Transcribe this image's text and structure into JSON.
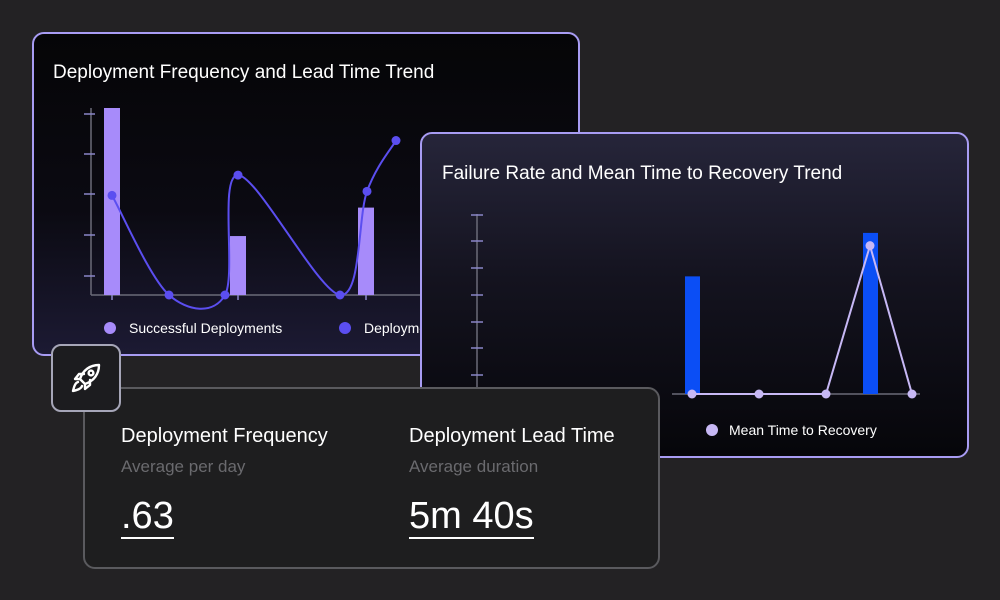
{
  "deployment_card": {
    "title": "Deployment Frequency and Lead Time Trend",
    "legend": [
      {
        "label": "Successful Deployments",
        "color": "#a78bfa"
      },
      {
        "label": "Deployment Lead Time",
        "color": "#5b4ef0"
      }
    ],
    "chart_data": {
      "type": "bar",
      "x": [
        0,
        1,
        2,
        3,
        4,
        5,
        6
      ],
      "series": [
        {
          "name": "Successful Deployments",
          "type": "bar",
          "color": "#a78bfa",
          "values": [
            4.6,
            0,
            0,
            1.45,
            0,
            0,
            2.15
          ]
        },
        {
          "name": "Deployment Lead Time",
          "type": "line",
          "color": "#5b4ef0",
          "values": [
            2.45,
            0,
            0,
            2.95,
            0,
            2.55,
            3.8
          ]
        }
      ],
      "ylim": [
        0,
        4.6
      ],
      "xlabel": "",
      "ylabel": ""
    }
  },
  "failure_card": {
    "title": "Failure Rate and Mean Time to Recovery Trend",
    "legend": [
      {
        "label": "Mean Time to Recovery",
        "color": "#c7b8f5"
      }
    ],
    "chart_data": {
      "type": "bar",
      "x": [
        0,
        1,
        2,
        3,
        4
      ],
      "series": [
        {
          "name": "Failure Rate",
          "type": "bar",
          "color": "#0b4ef5",
          "values": [
            4.6,
            0,
            0,
            6.3,
            0
          ]
        },
        {
          "name": "Mean Time to Recovery",
          "type": "line",
          "color": "#c7b8f5",
          "values": [
            0,
            0,
            0,
            5.8,
            0
          ]
        }
      ],
      "ylim": [
        0,
        7
      ],
      "xlabel": "",
      "ylabel": ""
    }
  },
  "metrics": {
    "frequency": {
      "label": "Deployment Frequency",
      "sublabel": "Average per day",
      "value": ".63"
    },
    "lead_time": {
      "label": "Deployment Lead Time",
      "sublabel": "Average duration",
      "value": "5m 40s"
    }
  },
  "icons": {
    "badge": "rocket-icon"
  }
}
